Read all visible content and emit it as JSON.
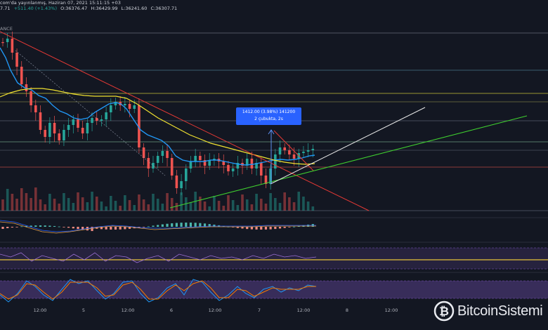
{
  "header": {
    "published": "com'da yayınlanmış, Haziran 07, 2021 15:11:15 +03",
    "change_prefix": "7.71",
    "change": "+511.40 (+1.43%)",
    "ohlc_open": "O:36376.47",
    "ohlc_high": "H:36429.99",
    "ohlc_low": "L:36241.60",
    "ohlc_close": "C:36307.71",
    "exchange": "ANCE"
  },
  "measure_tag": {
    "line1": "1412.00 (3.98%) 141200",
    "line2": "2 çubukta, 2s"
  },
  "x_axis": [
    "12:00",
    "5",
    "12:00",
    "6",
    "12:00",
    "7",
    "12:00",
    "8",
    "12:00"
  ],
  "brand": {
    "name": "BitcoinSistemi"
  },
  "colors": {
    "background": "#131722",
    "up": "#26a69a",
    "down": "#ef5350",
    "ema_fast": "#2196f3",
    "ema_slow": "#f0e130",
    "downtrend": "#e53935",
    "uptrend": "#3fcf2f",
    "white_trend": "#e8e8e8",
    "rsi_band": "#7e57c2"
  },
  "icons": [
    "bitcoin-coin-icon"
  ]
}
